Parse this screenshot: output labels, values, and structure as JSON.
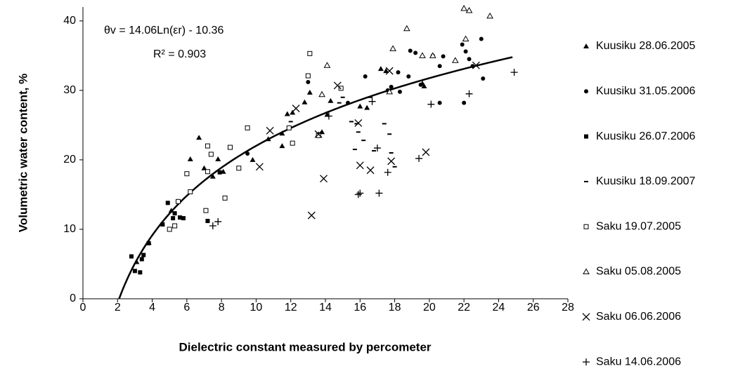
{
  "chart_data": {
    "type": "scatter",
    "xlabel": "Dielectric constant measured by percometer",
    "ylabel": "Volumetric water content, %",
    "annotations": [
      "θv = 14.06Ln(εr) - 10.36",
      "R² = 0.903"
    ],
    "trendline": {
      "slope": 14.06,
      "intercept": -10.36,
      "x": [
        2.09,
        24.8
      ]
    },
    "xlim": [
      0,
      28
    ],
    "xticks": [
      0,
      2,
      4,
      6,
      8,
      10,
      12,
      14,
      16,
      18,
      20,
      22,
      24,
      26,
      28
    ],
    "ylim": [
      0,
      42
    ],
    "yticks": [
      0,
      10,
      20,
      30,
      40
    ],
    "series": [
      {
        "name": "Kuusiku 28.06.2005",
        "color": "#000000",
        "marker": "triangle",
        "x": [
          6.2,
          6.7,
          7.0,
          7.5,
          7.8,
          8.1,
          9.8,
          10.7,
          11.5,
          11.5,
          11.8,
          12.1,
          12.8,
          13.1,
          13.6,
          13.8,
          14.1,
          14.3,
          16.0,
          16.4,
          17.2,
          17.5,
          19.6,
          19.7,
          5.1,
          3.8,
          3.1
        ],
        "values": [
          20.1,
          23.2,
          18.8,
          17.6,
          20.1,
          18.3,
          20.0,
          23.0,
          23.8,
          22.0,
          26.6,
          26.8,
          28.3,
          29.7,
          23.7,
          24.0,
          26.5,
          28.5,
          27.7,
          27.5,
          33.1,
          32.8,
          31.0,
          30.6,
          12.7,
          8.1,
          5.3
        ]
      },
      {
        "name": "Kuusiku 31.05.2006",
        "color": "#000000",
        "marker": "circle",
        "x": [
          13.0,
          15.3,
          16.3,
          17.6,
          17.8,
          18.2,
          18.3,
          18.8,
          18.9,
          19.2,
          19.5,
          20.2,
          20.6,
          20.6,
          20.8,
          21.9,
          22.0,
          22.1,
          22.3,
          22.5,
          23.0,
          23.1,
          9.5
        ],
        "values": [
          31.2,
          28.2,
          32.0,
          30.0,
          30.5,
          32.6,
          29.8,
          32.0,
          35.7,
          35.4,
          30.8,
          35.0,
          33.5,
          28.2,
          34.9,
          36.6,
          28.2,
          35.6,
          34.5,
          33.5,
          37.4,
          31.7,
          20.9
        ]
      },
      {
        "name": "Kuusiku 26.07.2006",
        "color": "#000000",
        "marker": "square",
        "x": [
          2.8,
          3.0,
          3.3,
          3.4,
          3.5,
          3.8,
          4.6,
          4.9,
          5.2,
          5.3,
          5.6,
          5.8,
          7.2,
          7.9
        ],
        "values": [
          6.1,
          4.0,
          3.8,
          5.7,
          6.3,
          8.0,
          10.7,
          13.8,
          11.6,
          12.3,
          11.7,
          11.6,
          11.2,
          18.2
        ]
      },
      {
        "name": "Kuusiku 18.09.2007",
        "color": "#000000",
        "marker": "dash",
        "x": [
          12.0,
          14.8,
          15.0,
          15.5,
          15.7,
          15.8,
          15.9,
          16.2,
          16.6,
          16.8,
          17.4,
          17.7,
          17.8,
          18.0
        ],
        "values": [
          25.5,
          28.2,
          29.0,
          25.5,
          21.5,
          25.2,
          24.0,
          22.8,
          29.0,
          21.3,
          25.2,
          23.7,
          21.0,
          19.0
        ]
      },
      {
        "name": "Saku 19.07.2005",
        "color": "#000000",
        "marker": "open-square",
        "x": [
          5.0,
          5.3,
          5.5,
          6.2,
          6.0,
          7.1,
          7.2,
          7.4,
          7.2,
          8.2,
          8.5,
          9.0,
          9.5,
          11.9,
          12.1,
          13.0,
          13.1,
          13.6,
          14.9
        ],
        "values": [
          10.0,
          10.5,
          14.0,
          15.4,
          18.0,
          12.7,
          22.0,
          20.8,
          18.3,
          14.5,
          21.8,
          18.8,
          24.6,
          24.6,
          22.4,
          32.1,
          35.3,
          23.5,
          30.3
        ]
      },
      {
        "name": "Saku 05.08.2005",
        "color": "#000000",
        "marker": "open-triangle",
        "x": [
          13.8,
          14.1,
          17.9,
          18.7,
          19.6,
          20.2,
          21.5,
          22.0,
          22.3,
          22.1,
          23.5,
          17.7
        ],
        "values": [
          29.4,
          33.6,
          36.0,
          38.9,
          35.0,
          35.0,
          34.3,
          41.8,
          41.5,
          37.4,
          40.7,
          29.8
        ]
      },
      {
        "name": "Saku 06.06.2006",
        "color": "#000000",
        "marker": "cross",
        "x": [
          13.2,
          10.2,
          10.8,
          12.3,
          13.6,
          13.9,
          14.7,
          15.9,
          16.0,
          16.6,
          17.7,
          17.8,
          19.8,
          22.7
        ],
        "values": [
          12.0,
          19.0,
          24.2,
          27.4,
          23.7,
          17.3,
          30.7,
          25.3,
          19.2,
          18.5,
          32.8,
          19.8,
          21.1,
          33.6
        ]
      },
      {
        "name": "Saku 14.06.2006",
        "color": "#000000",
        "marker": "plus",
        "x": [
          7.5,
          7.8,
          14.2,
          15.9,
          16.0,
          16.7,
          17.1,
          17.0,
          17.6,
          19.4,
          20.1,
          22.3,
          24.9
        ],
        "values": [
          10.5,
          11.1,
          26.3,
          15.0,
          15.2,
          28.4,
          15.2,
          21.7,
          18.2,
          20.2,
          28.0,
          29.5,
          32.6
        ]
      }
    ]
  }
}
